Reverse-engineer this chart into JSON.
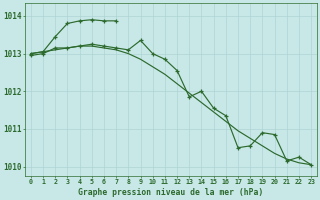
{
  "hours": [
    0,
    1,
    2,
    3,
    4,
    5,
    6,
    7,
    8,
    9,
    10,
    11,
    12,
    13,
    14,
    15,
    16,
    17,
    18,
    19,
    20,
    21,
    22,
    23
  ],
  "series_arc": [
    1013.0,
    1013.05,
    1013.45,
    1013.8,
    1013.87,
    1013.9,
    1013.87,
    1013.87,
    null,
    null,
    null,
    null,
    null,
    null,
    null,
    null,
    null,
    null,
    null,
    null,
    null,
    null,
    null,
    null
  ],
  "series_wave": [
    1012.95,
    1013.0,
    1013.15,
    1013.15,
    1013.2,
    1013.25,
    1013.2,
    1013.15,
    1013.1,
    1013.35,
    1013.0,
    1012.85,
    1012.55,
    1011.85,
    1012.0,
    1011.55,
    1011.35,
    1010.5,
    1010.55,
    1010.9,
    1010.85,
    1010.15,
    1010.25,
    1010.05
  ],
  "series_line": [
    1013.0,
    1013.05,
    1013.1,
    1013.15,
    1013.2,
    1013.2,
    1013.15,
    1013.1,
    1013.0,
    1012.85,
    1012.65,
    1012.45,
    1012.2,
    1011.95,
    1011.7,
    1011.45,
    1011.2,
    1010.95,
    1010.75,
    1010.55,
    1010.35,
    1010.2,
    1010.1,
    1010.05
  ],
  "color": "#2d6a2d",
  "bg_color": "#c8e8e8",
  "grid_color": "#a8d0d0",
  "ylabel_ticks": [
    1010,
    1011,
    1012,
    1013,
    1014
  ],
  "xlim": [
    -0.5,
    23.5
  ],
  "ylim": [
    1009.75,
    1014.35
  ],
  "xlabel": "Graphe pression niveau de la mer (hPa)"
}
